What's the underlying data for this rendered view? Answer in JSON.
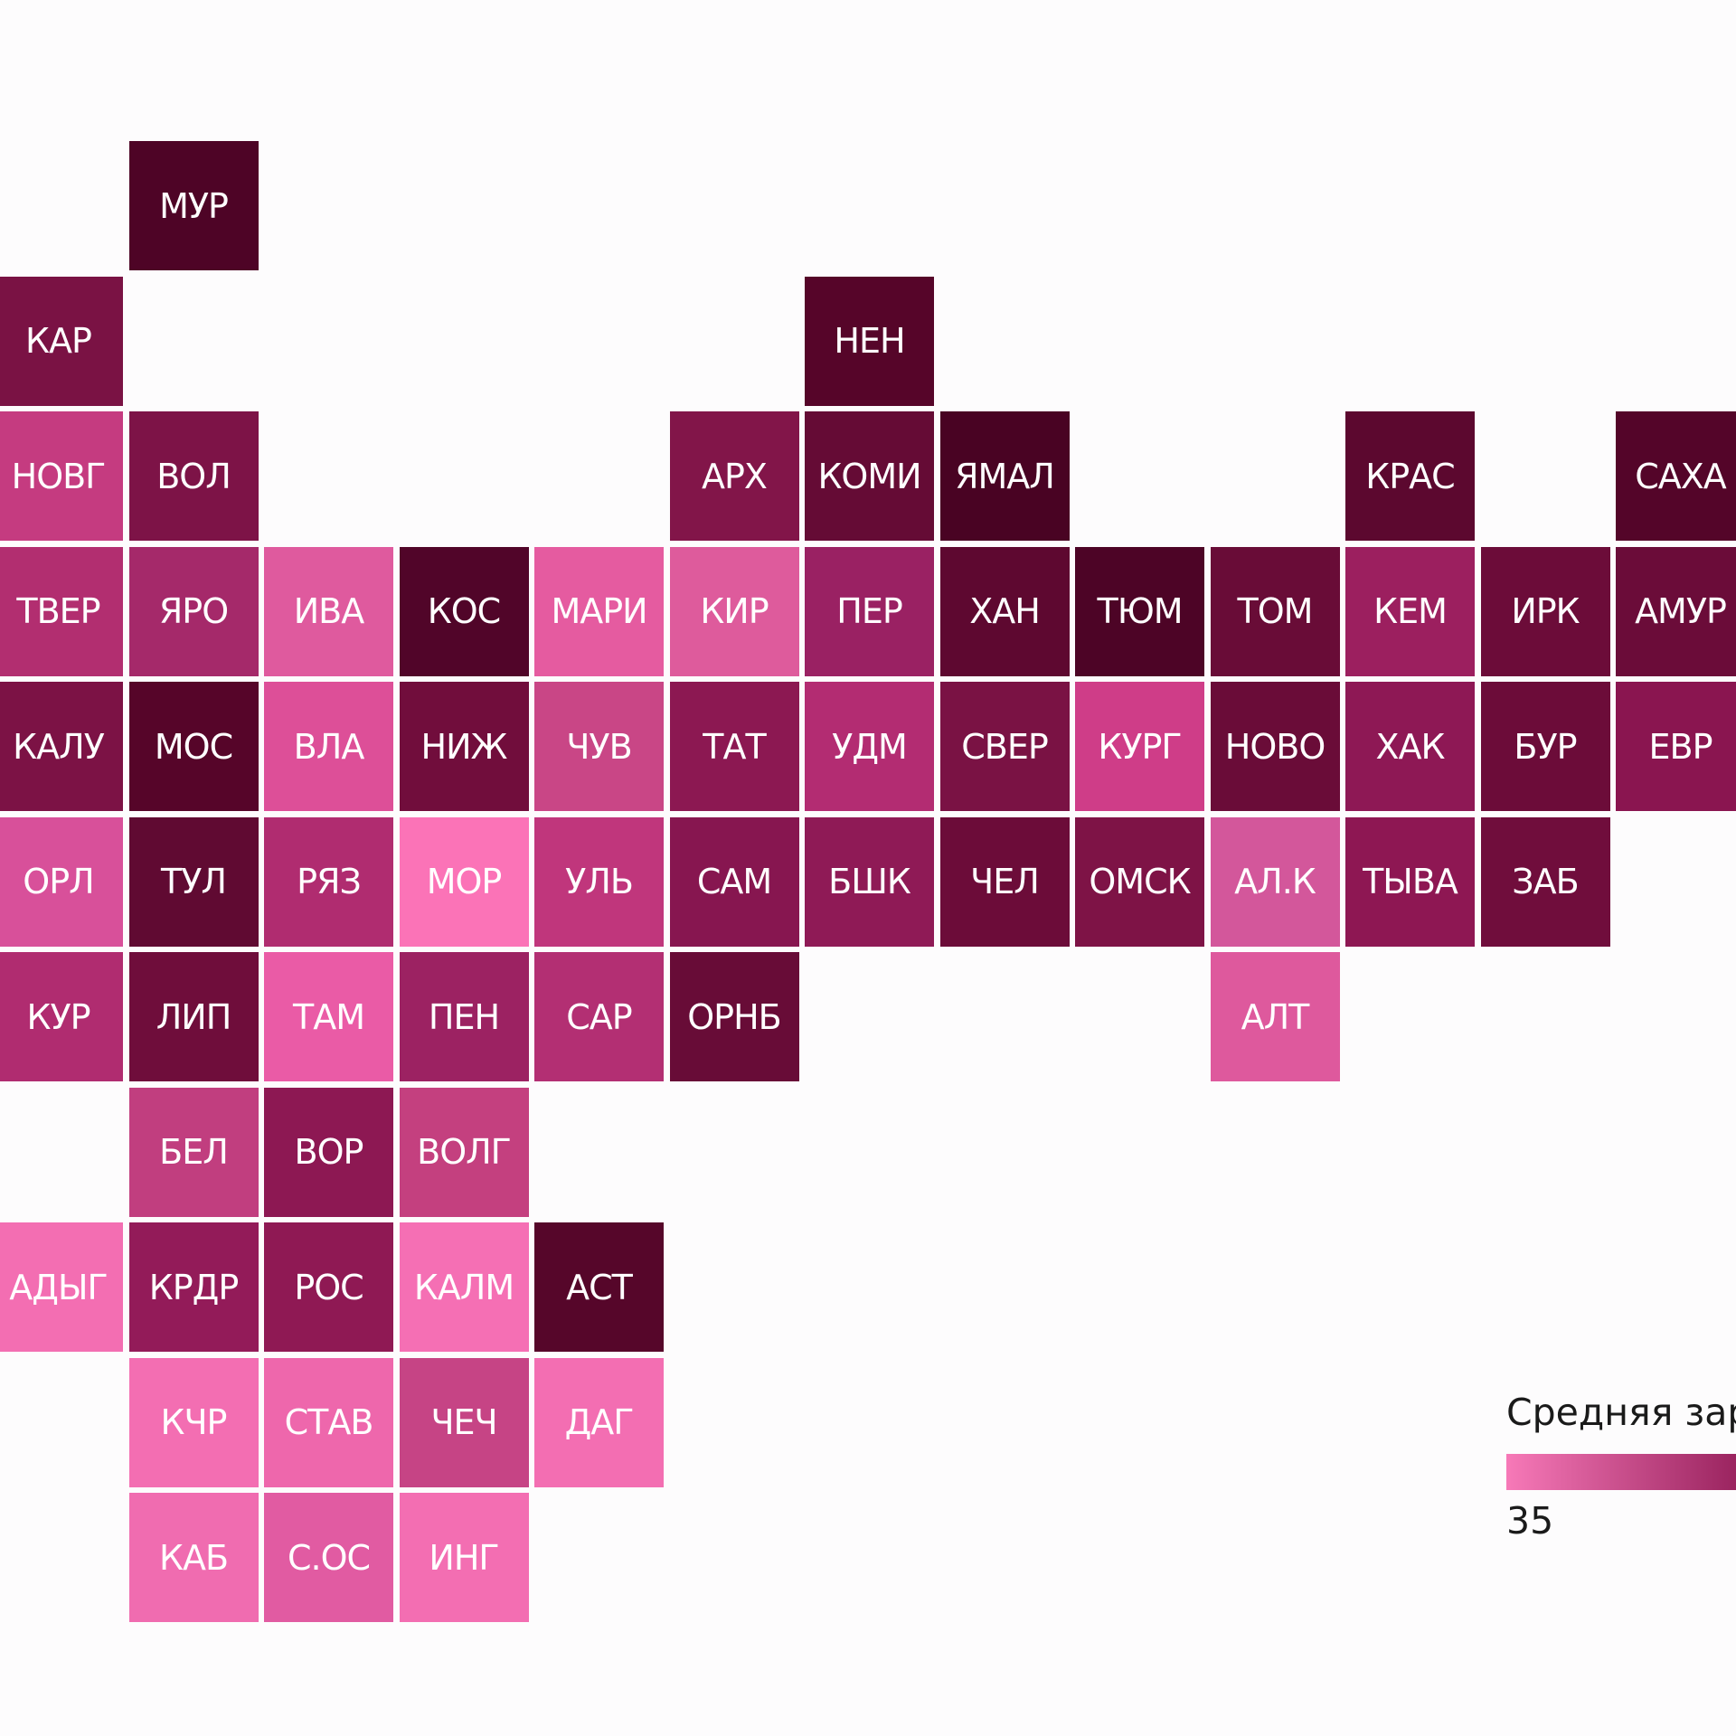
{
  "colors": {
    "legend_low": "#f779b8",
    "legend_high": "#8a1550"
  },
  "legend": {
    "title": "Средняя зар",
    "min_label": "35"
  },
  "regions": [
    {
      "label": "МУР",
      "row": 0,
      "col": 1,
      "color": "#4e0426"
    },
    {
      "label": "КАР",
      "row": 1,
      "col": 0,
      "color": "#7a1244"
    },
    {
      "label": "НЕН",
      "row": 1,
      "col": 6,
      "color": "#560529"
    },
    {
      "label": "НОВГ",
      "row": 2,
      "col": 0,
      "color": "#c53b80"
    },
    {
      "label": "ВОЛ",
      "row": 2,
      "col": 1,
      "color": "#7d1347"
    },
    {
      "label": "АРХ",
      "row": 2,
      "col": 5,
      "color": "#821549"
    },
    {
      "label": "КОМИ",
      "row": 2,
      "col": 6,
      "color": "#650b35"
    },
    {
      "label": "ЯМАЛ",
      "row": 2,
      "col": 7,
      "color": "#490323"
    },
    {
      "label": "КРАС",
      "row": 2,
      "col": 10,
      "color": "#5c082f"
    },
    {
      "label": "САХА",
      "row": 2,
      "col": 12,
      "color": "#540529"
    },
    {
      "label": "ТВЕР",
      "row": 3,
      "col": 0,
      "color": "#b22e70"
    },
    {
      "label": "ЯРО",
      "row": 3,
      "col": 1,
      "color": "#a5296a"
    },
    {
      "label": "ИВА",
      "row": 3,
      "col": 2,
      "color": "#df5a9e"
    },
    {
      "label": "КОС",
      "row": 3,
      "col": 3,
      "color": "#510529"
    },
    {
      "label": "МАРИ",
      "row": 3,
      "col": 4,
      "color": "#e55ba0"
    },
    {
      "label": "КИР",
      "row": 3,
      "col": 5,
      "color": "#de5b9c"
    },
    {
      "label": "ПЕР",
      "row": 3,
      "col": 6,
      "color": "#9a2163"
    },
    {
      "label": "ХАН",
      "row": 3,
      "col": 7,
      "color": "#5e0830"
    },
    {
      "label": "ТЮМ",
      "row": 3,
      "col": 8,
      "color": "#4d0426"
    },
    {
      "label": "ТОМ",
      "row": 3,
      "col": 9,
      "color": "#690c37"
    },
    {
      "label": "КЕМ",
      "row": 3,
      "col": 10,
      "color": "#9c1f5f"
    },
    {
      "label": "ИРК",
      "row": 3,
      "col": 11,
      "color": "#6c0c39"
    },
    {
      "label": "АМУР",
      "row": 3,
      "col": 12,
      "color": "#6b0c39"
    },
    {
      "label": "КАЛУ",
      "row": 4,
      "col": 0,
      "color": "#7c1245"
    },
    {
      "label": "МОС",
      "row": 4,
      "col": 1,
      "color": "#560529"
    },
    {
      "label": "ВЛА",
      "row": 4,
      "col": 2,
      "color": "#dd4f98"
    },
    {
      "label": "НИЖ",
      "row": 4,
      "col": 3,
      "color": "#710d3c"
    },
    {
      "label": "ЧУВ",
      "row": 4,
      "col": 4,
      "color": "#c94686"
    },
    {
      "label": "ТАТ",
      "row": 4,
      "col": 5,
      "color": "#8c1852"
    },
    {
      "label": "УДМ",
      "row": 4,
      "col": 6,
      "color": "#b32c72"
    },
    {
      "label": "СВЕР",
      "row": 4,
      "col": 7,
      "color": "#7a1244"
    },
    {
      "label": "КУРГ",
      "row": 4,
      "col": 8,
      "color": "#cf3d88"
    },
    {
      "label": "НОВО",
      "row": 4,
      "col": 9,
      "color": "#6a0c38"
    },
    {
      "label": "ХАК",
      "row": 4,
      "col": 10,
      "color": "#8e1855"
    },
    {
      "label": "БУР",
      "row": 4,
      "col": 11,
      "color": "#6c0c39"
    },
    {
      "label": "ЕВР",
      "row": 4,
      "col": 12,
      "color": "#8a1550"
    },
    {
      "label": "ОРЛ",
      "row": 5,
      "col": 0,
      "color": "#d8509a"
    },
    {
      "label": "ТУЛ",
      "row": 5,
      "col": 1,
      "color": "#600a32"
    },
    {
      "label": "РЯЗ",
      "row": 5,
      "col": 2,
      "color": "#b02c70"
    },
    {
      "label": "МОР",
      "row": 5,
      "col": 3,
      "color": "#fb73b7"
    },
    {
      "label": "УЛЬ",
      "row": 5,
      "col": 4,
      "color": "#c0367c"
    },
    {
      "label": "САМ",
      "row": 5,
      "col": 5,
      "color": "#871650"
    },
    {
      "label": "БШК",
      "row": 5,
      "col": 6,
      "color": "#8f1a56"
    },
    {
      "label": "ЧЕЛ",
      "row": 5,
      "col": 7,
      "color": "#6c0c39"
    },
    {
      "label": "ОМСК",
      "row": 5,
      "col": 8,
      "color": "#7e1346"
    },
    {
      "label": "АЛ.К",
      "row": 5,
      "col": 9,
      "color": "#d3579b"
    },
    {
      "label": "ТЫВА",
      "row": 5,
      "col": 10,
      "color": "#8e1753"
    },
    {
      "label": "ЗАБ",
      "row": 5,
      "col": 11,
      "color": "#700d3c"
    },
    {
      "label": "КУР",
      "row": 6,
      "col": 0,
      "color": "#b02c70"
    },
    {
      "label": "ЛИП",
      "row": 6,
      "col": 1,
      "color": "#6f0d3b"
    },
    {
      "label": "ТАМ",
      "row": 6,
      "col": 2,
      "color": "#ea5ba6"
    },
    {
      "label": "ПЕН",
      "row": 6,
      "col": 3,
      "color": "#9c2262"
    },
    {
      "label": "САР",
      "row": 6,
      "col": 4,
      "color": "#b32f73"
    },
    {
      "label": "ОРНБ",
      "row": 6,
      "col": 5,
      "color": "#680c37"
    },
    {
      "label": "АЛТ",
      "row": 6,
      "col": 9,
      "color": "#de599d"
    },
    {
      "label": "БЕЛ",
      "row": 7,
      "col": 1,
      "color": "#c13e7f"
    },
    {
      "label": "ВОР",
      "row": 7,
      "col": 2,
      "color": "#8d1853"
    },
    {
      "label": "ВОЛГ",
      "row": 7,
      "col": 3,
      "color": "#c4407f"
    },
    {
      "label": "АДЫГ",
      "row": 8,
      "col": 0,
      "color": "#f36eb2"
    },
    {
      "label": "КРДР",
      "row": 8,
      "col": 1,
      "color": "#931b59"
    },
    {
      "label": "РОС",
      "row": 8,
      "col": 2,
      "color": "#8f1954"
    },
    {
      "label": "КАЛМ",
      "row": 8,
      "col": 3,
      "color": "#f56fb4"
    },
    {
      "label": "АСТ",
      "row": 8,
      "col": 4,
      "color": "#56062a"
    },
    {
      "label": "КЧР",
      "row": 9,
      "col": 1,
      "color": "#f36eb2"
    },
    {
      "label": "СТАВ",
      "row": 9,
      "col": 2,
      "color": "#ee67ac"
    },
    {
      "label": "ЧЕЧ",
      "row": 9,
      "col": 3,
      "color": "#c64485"
    },
    {
      "label": "ДАГ",
      "row": 9,
      "col": 4,
      "color": "#f36eb2"
    },
    {
      "label": "КАБ",
      "row": 10,
      "col": 1,
      "color": "#f06cb0"
    },
    {
      "label": "С.ОС",
      "row": 10,
      "col": 2,
      "color": "#e15ba2"
    },
    {
      "label": "ИНГ",
      "row": 10,
      "col": 3,
      "color": "#f36eb2"
    }
  ]
}
